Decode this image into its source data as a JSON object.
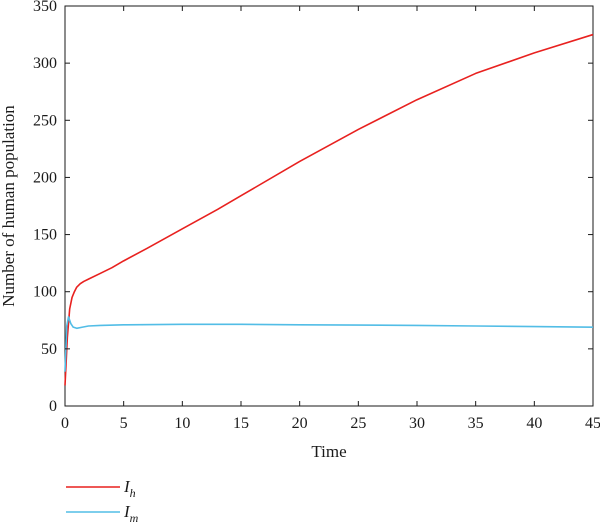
{
  "chart_data": {
    "type": "line",
    "title": "",
    "xlabel": "Time",
    "ylabel": "Number of human population",
    "xlim": [
      0,
      45
    ],
    "ylim": [
      0,
      350
    ],
    "xticks": [
      0,
      5,
      10,
      15,
      20,
      25,
      30,
      35,
      40,
      45
    ],
    "yticks": [
      0,
      50,
      100,
      150,
      200,
      250,
      300,
      350
    ],
    "grid": false,
    "legend_position": "bottom-left",
    "series": [
      {
        "name": "I",
        "subscript": "h",
        "color": "#e8211f",
        "x": [
          0,
          0.2,
          0.4,
          0.6,
          0.8,
          1.0,
          1.3,
          1.6,
          2.0,
          3,
          4,
          5,
          7,
          10,
          13,
          15,
          20,
          25,
          30,
          35,
          40,
          45
        ],
        "y": [
          18,
          60,
          85,
          95,
          100,
          104,
          107,
          109,
          111,
          116,
          121,
          127,
          138,
          155,
          172,
          184,
          214,
          242,
          268,
          291,
          309,
          325
        ]
      },
      {
        "name": "I",
        "subscript": "m",
        "color": "#52bde6",
        "x": [
          0,
          0.15,
          0.3,
          0.5,
          0.7,
          1.0,
          1.5,
          2,
          3,
          5,
          10,
          15,
          20,
          25,
          30,
          35,
          40,
          45
        ],
        "y": [
          30,
          70,
          78,
          72,
          69,
          68,
          69,
          70,
          70.5,
          71,
          71.5,
          71.5,
          71,
          70.8,
          70.5,
          70,
          69.5,
          69
        ]
      }
    ]
  }
}
